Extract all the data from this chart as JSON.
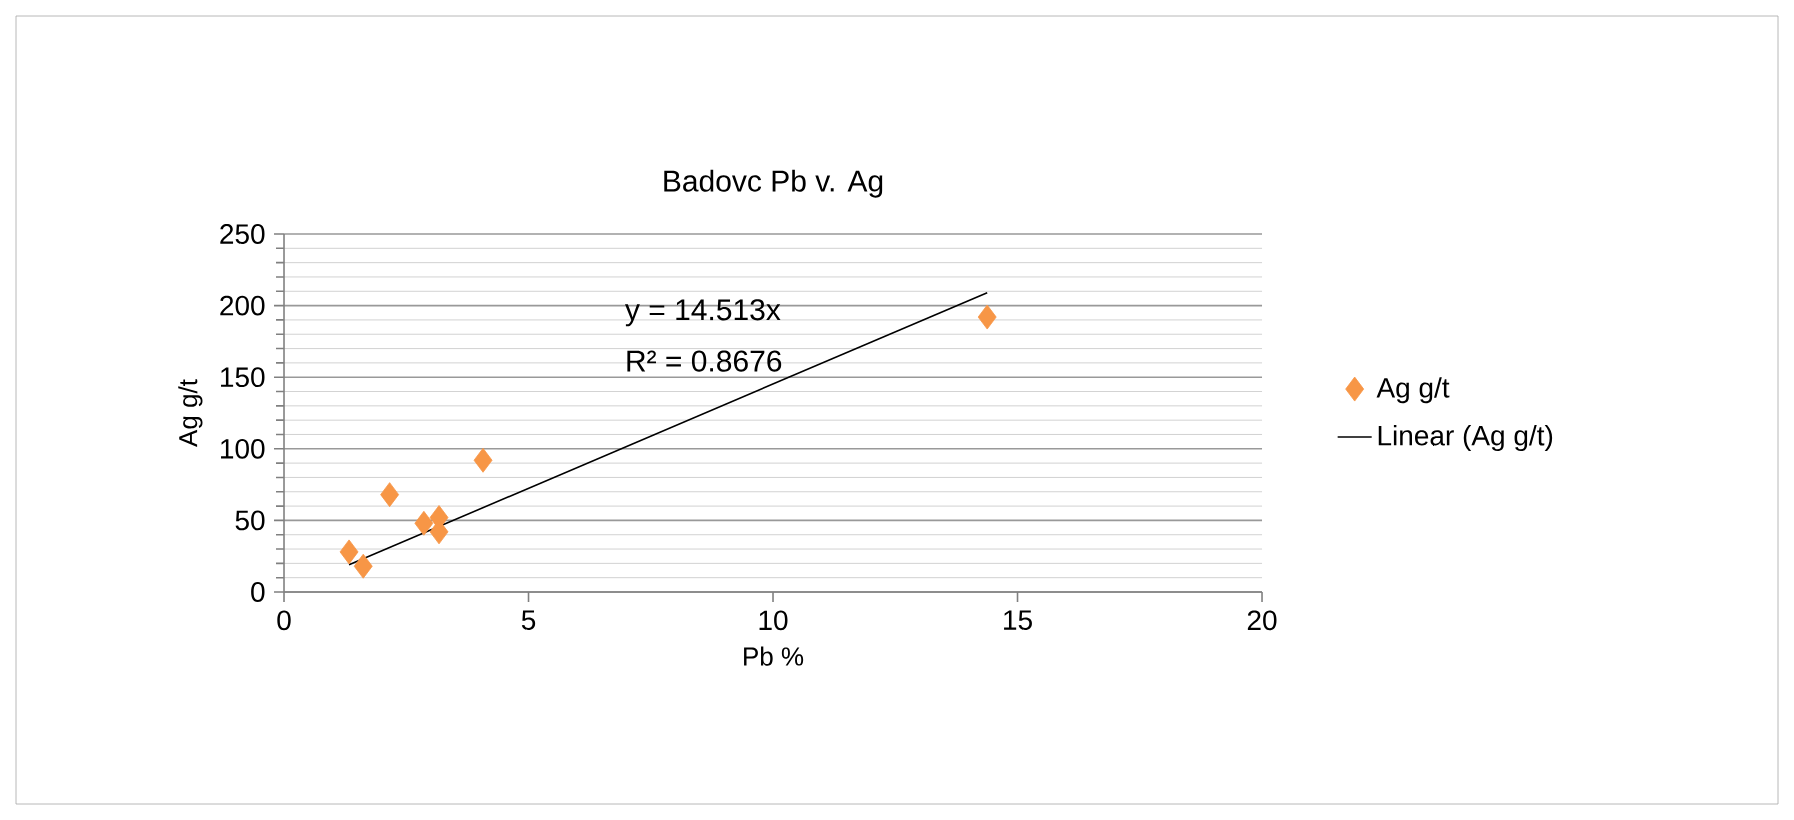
{
  "chart_data": {
    "type": "scatter",
    "title": "Badovc Pb v. Ag",
    "xlabel": "Pb %",
    "ylabel": "Ag g/t",
    "xlim": [
      0,
      20
    ],
    "xticks": [
      0,
      5,
      10,
      15,
      20
    ],
    "ylim": [
      0,
      250
    ],
    "yticks": [
      0,
      50,
      100,
      150,
      200,
      250
    ],
    "grid": "y",
    "legend": "right",
    "series": [
      {
        "name": "Ag g/t",
        "color": "#f79646",
        "marker": "diamond",
        "x": [
          1.33,
          1.62,
          2.16,
          2.86,
          3.17,
          3.17,
          4.07,
          14.38
        ],
        "values": [
          28,
          18,
          68,
          48,
          52,
          42,
          92,
          192
        ]
      },
      {
        "name": "Linear (Ag g/t)",
        "type": "line",
        "color": "#000000",
        "marker": "none",
        "x": [
          1.33,
          14.38
        ],
        "values": [
          19,
          209
        ]
      }
    ],
    "annotations": [
      "y = 14.513x",
      "R² = 0.8676"
    ]
  }
}
